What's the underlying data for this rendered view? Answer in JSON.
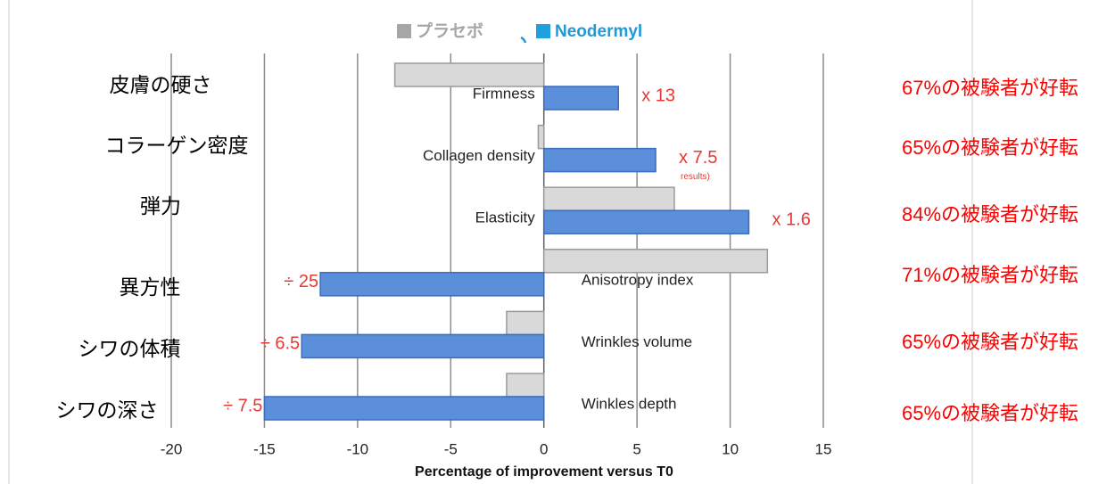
{
  "chart_data": {
    "type": "bar",
    "orientation": "horizontal",
    "categories": [
      "Firmness",
      "Collagen density",
      "Elasticity",
      "Anisotropy index",
      "Wrinkles volume",
      "Winkles depth"
    ],
    "category_labels_ja": [
      "皮膚の硬さ",
      "コラーゲン密度",
      "弾力",
      "異方性",
      "シワの体積",
      "シワの深さ"
    ],
    "series": [
      {
        "name": "プラセボ",
        "color": "#d9d9d9",
        "values": [
          -8,
          -0.3,
          7,
          12,
          -2,
          -2
        ]
      },
      {
        "name": "Neodermyl",
        "color": "#5b8fd9",
        "values": [
          4,
          6,
          11,
          -12,
          -13,
          -15
        ]
      }
    ],
    "ratio_labels": [
      "x 13",
      "x 7.5",
      "x 1.6",
      "÷ 25",
      "÷ 6.5",
      "÷ 7.5"
    ],
    "ratio_note": "results)",
    "right_notes": [
      "67%の被験者が好転",
      "65%の被験者が好転",
      "84%の被験者が好転",
      "71%の被験者が好転",
      "65%の被験者が好転",
      "65%の被験者が好転"
    ],
    "xlabel": "Percentage of improvement versus T0",
    "xlim": [
      -20,
      15
    ],
    "xticks": [
      -20,
      -15,
      -10,
      -5,
      0,
      5,
      10,
      15
    ],
    "grid": true
  }
}
